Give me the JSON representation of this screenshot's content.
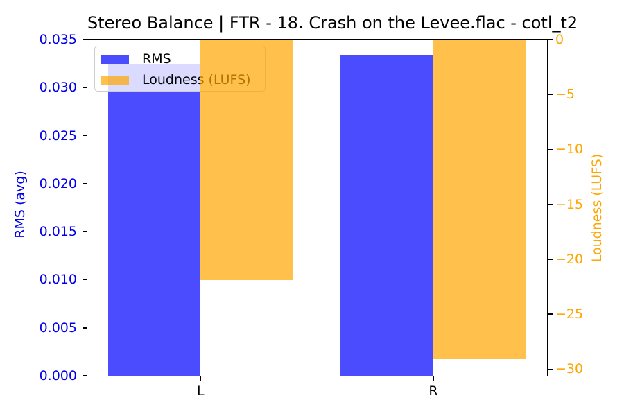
{
  "figure": {
    "background": "#FFFFFF"
  },
  "chart_data": {
    "type": "bar",
    "title": "Stereo Balance | FTR - 18. Crash on the Levee.flac - cotl_t2",
    "categories": [
      "L",
      "R"
    ],
    "series": [
      {
        "name": "RMS",
        "axis": "left",
        "color": "#0000FF",
        "alpha": 0.7,
        "values": [
          0.0324,
          0.0334
        ]
      },
      {
        "name": "Loudness (LUFS)",
        "axis": "right",
        "color": "#FFA500",
        "alpha": 0.7,
        "values": [
          -21.9,
          -29.1
        ]
      }
    ],
    "left_axis": {
      "label": "RMS (avg)",
      "color": "#0000EE",
      "range": [
        0,
        0.035
      ],
      "ticks": [
        {
          "label": "0.000",
          "value": 0.0
        },
        {
          "label": "0.005",
          "value": 0.005
        },
        {
          "label": "0.010",
          "value": 0.01
        },
        {
          "label": "0.015",
          "value": 0.015
        },
        {
          "label": "0.020",
          "value": 0.02
        },
        {
          "label": "0.025",
          "value": 0.025
        },
        {
          "label": "0.030",
          "value": 0.03
        },
        {
          "label": "0.035",
          "value": 0.035
        }
      ]
    },
    "right_axis": {
      "label": "Loudness (LUFS)",
      "color": "#FFA500",
      "range": [
        -30.6,
        0
      ],
      "ticks": [
        {
          "label": "0",
          "value": 0
        },
        {
          "label": "−5",
          "value": -5
        },
        {
          "label": "−10",
          "value": -10
        },
        {
          "label": "−15",
          "value": -15
        },
        {
          "label": "−20",
          "value": -20
        },
        {
          "label": "−25",
          "value": -25
        },
        {
          "label": "−30",
          "value": -30
        }
      ]
    },
    "legend": {
      "position": "upper left",
      "entries": [
        {
          "label": "RMS"
        },
        {
          "label": "Loudness (LUFS)"
        }
      ]
    },
    "grid": false
  }
}
